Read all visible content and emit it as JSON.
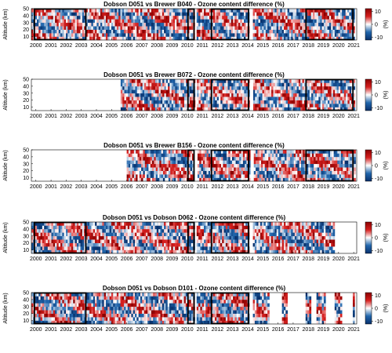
{
  "chart_data": [
    {
      "type": "heatmap",
      "title": "Dobson D051 vs Brewer B040 - Ozone content difference (%)",
      "ylabel": "Altitude (km)",
      "x_tick_labels": [
        "2000",
        "2001",
        "2002",
        "2003",
        "2004",
        "2005",
        "2006",
        "2007",
        "2008",
        "2009",
        "2010",
        "2011",
        "2012",
        "2013",
        "2014",
        "2015",
        "2016",
        "2017",
        "2018",
        "2019",
        "2020",
        "2021"
      ],
      "xlim": [
        1999.7,
        2021.2
      ],
      "y_ticks": [
        10,
        20,
        30,
        40,
        50
      ],
      "ylim": [
        5,
        50
      ],
      "colorbar": {
        "ticks": [
          -10,
          0,
          10
        ],
        "label": "(%)",
        "range": [
          -12,
          12
        ],
        "colors": [
          "#08306b",
          "#ffffff",
          "#8b0000"
        ]
      },
      "data_start": 1999.7,
      "data_end": 2021.0,
      "gaps": [
        [
          2010.4,
          2010.6
        ],
        [
          2014.05,
          2014.3
        ]
      ],
      "highlight_periods": [
        [
          1999.9,
          2003.3
        ],
        [
          2010.05,
          2010.45
        ],
        [
          2011.6,
          2014.05
        ],
        [
          2017.85,
          2020.95
        ]
      ]
    },
    {
      "type": "heatmap",
      "title": "Dobson D051 vs Brewer B072 - Ozone content difference (%)",
      "ylabel": "Altitude (km)",
      "x_tick_labels": [
        "2000",
        "2001",
        "2002",
        "2003",
        "2004",
        "2005",
        "2006",
        "2007",
        "2008",
        "2009",
        "2010",
        "2011",
        "2012",
        "2013",
        "2014",
        "2015",
        "2016",
        "2017",
        "2018",
        "2019",
        "2020",
        "2021"
      ],
      "xlim": [
        1999.7,
        2021.2
      ],
      "y_ticks": [
        10,
        20,
        30,
        40,
        50
      ],
      "ylim": [
        5,
        50
      ],
      "colorbar": {
        "ticks": [
          -10,
          0,
          10
        ],
        "label": "(%)",
        "range": [
          -12,
          12
        ],
        "colors": [
          "#08306b",
          "#ffffff",
          "#8b0000"
        ]
      },
      "data_start": 2005.6,
      "data_end": 2021.0,
      "gaps": [
        [
          2010.4,
          2010.6
        ],
        [
          2014.05,
          2014.3
        ]
      ],
      "highlight_periods": [
        [
          2010.05,
          2010.45
        ],
        [
          2011.6,
          2014.05
        ],
        [
          2017.85,
          2020.95
        ]
      ]
    },
    {
      "type": "heatmap",
      "title": "Dobson D051 vs Brewer B156 - Ozone content difference (%)",
      "ylabel": "Altitude (km)",
      "x_tick_labels": [
        "2000",
        "2001",
        "2002",
        "2003",
        "2004",
        "2005",
        "2006",
        "2007",
        "2008",
        "2009",
        "2010",
        "2011",
        "2012",
        "2013",
        "2014",
        "2015",
        "2016",
        "2017",
        "2018",
        "2019",
        "2020",
        "2021"
      ],
      "xlim": [
        1999.7,
        2021.2
      ],
      "y_ticks": [
        10,
        20,
        30,
        40,
        50
      ],
      "ylim": [
        5,
        50
      ],
      "colorbar": {
        "ticks": [
          -10,
          0,
          10
        ],
        "label": "(%)",
        "range": [
          -12,
          12
        ],
        "colors": [
          "#08306b",
          "#ffffff",
          "#8b0000"
        ]
      },
      "data_start": 2006.0,
      "data_end": 2021.0,
      "gaps": [
        [
          2010.4,
          2010.6
        ],
        [
          2014.05,
          2014.3
        ]
      ],
      "highlight_periods": [
        [
          2010.05,
          2010.45
        ],
        [
          2011.6,
          2014.05
        ],
        [
          2017.85,
          2020.95
        ]
      ]
    },
    {
      "type": "heatmap",
      "title": "Dobson D051 vs Dobson D062 - Ozone content difference (%)",
      "ylabel": "Altitude (km)",
      "x_tick_labels": [
        "2000",
        "2001",
        "2002",
        "2003",
        "2004",
        "2005",
        "2006",
        "2007",
        "2008",
        "2009",
        "2010",
        "2011",
        "2012",
        "2013",
        "2014",
        "2015",
        "2016",
        "2017",
        "2018",
        "2019",
        "2020",
        "2021"
      ],
      "xlim": [
        1999.7,
        2021.2
      ],
      "y_ticks": [
        10,
        20,
        30,
        40,
        50
      ],
      "ylim": [
        5,
        50
      ],
      "colorbar": {
        "ticks": [
          -10,
          0,
          10
        ],
        "label": "(%)",
        "range": [
          -12,
          12
        ],
        "colors": [
          "#08306b",
          "#ffffff",
          "#8b0000"
        ]
      },
      "data_start": 1999.7,
      "data_end": 2019.7,
      "gaps": [
        [
          2010.4,
          2010.6
        ],
        [
          2014.05,
          2014.3
        ]
      ],
      "highlight_periods": [
        [
          1999.9,
          2003.3
        ],
        [
          2010.05,
          2010.45
        ],
        [
          2011.6,
          2014.05
        ]
      ]
    },
    {
      "type": "heatmap",
      "title": "Dobson D051 vs Dobson D101 - Ozone content difference (%)",
      "ylabel": "Altitude (km)",
      "x_tick_labels": [
        "2000",
        "2001",
        "2002",
        "2003",
        "2004",
        "2005",
        "2006",
        "2007",
        "2008",
        "2009",
        "2010",
        "2011",
        "2012",
        "2013",
        "2014",
        "2015",
        "2016",
        "2017",
        "2018",
        "2019",
        "2020",
        "2021"
      ],
      "xlim": [
        1999.7,
        2021.2
      ],
      "y_ticks": [
        10,
        20,
        30,
        40,
        50
      ],
      "ylim": [
        5,
        50
      ],
      "colorbar": {
        "ticks": [
          -10,
          0,
          10
        ],
        "label": "(%)",
        "range": [
          -12,
          12
        ],
        "colors": [
          "#08306b",
          "#ffffff",
          "#8b0000"
        ]
      },
      "data_start": 1999.7,
      "data_end": 2021.0,
      "gaps": [
        [
          2010.4,
          2010.6
        ],
        [
          2014.05,
          2014.3
        ],
        [
          2015.3,
          2016.2
        ],
        [
          2016.6,
          2017.7
        ],
        [
          2018.1,
          2018.5
        ],
        [
          2019.1,
          2019.7
        ],
        [
          2020.2,
          2020.9
        ]
      ],
      "highlight_periods": [
        [
          1999.9,
          2003.3
        ],
        [
          2010.05,
          2010.45
        ],
        [
          2011.6,
          2014.05
        ]
      ]
    }
  ]
}
